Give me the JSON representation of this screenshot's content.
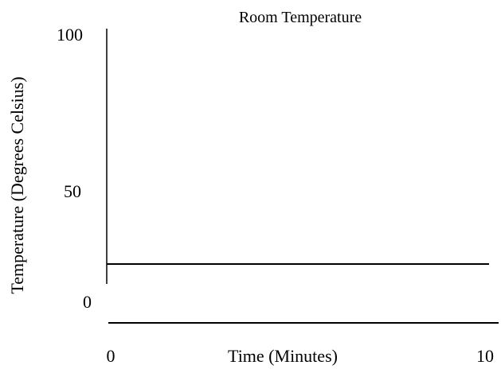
{
  "chart_data": {
    "type": "line",
    "title": "Room Temperature",
    "xlabel": "Time (Minutes)",
    "ylabel": "Temperature (Degrees Celsius)",
    "xlim": [
      0,
      10
    ],
    "ylim": [
      0,
      100
    ],
    "x_ticks": [
      "0",
      "10"
    ],
    "y_ticks": [
      "0",
      "50",
      "100"
    ],
    "grid": false,
    "series": [
      {
        "x": [
          0,
          10
        ],
        "y": [
          20,
          20
        ]
      }
    ],
    "colors": {
      "line": "#000000",
      "axis": "#000000",
      "background": "#ffffff"
    }
  }
}
